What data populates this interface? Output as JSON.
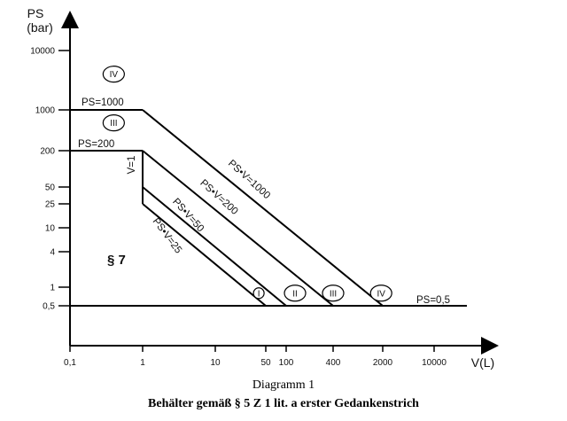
{
  "chart_data": {
    "type": "line",
    "y_axis": {
      "label_line1": "PS",
      "label_line2": "(bar)",
      "scale": "log",
      "ticks": [
        "0,5",
        "1",
        "4",
        "10",
        "25",
        "50",
        "200",
        "1000",
        "10000"
      ],
      "tick_values": [
        0.5,
        1,
        4,
        10,
        25,
        50,
        200,
        1000,
        10000
      ]
    },
    "x_axis": {
      "label": "V(L)",
      "scale": "log",
      "ticks": [
        "0,1",
        "1",
        "10",
        "50",
        "100",
        "400",
        "2000",
        "10000"
      ],
      "tick_values": [
        0.1,
        1,
        10,
        50,
        100,
        400,
        2000,
        10000
      ]
    },
    "series": [
      {
        "name": "PS=1000",
        "points": [
          [
            0.1,
            1000
          ],
          [
            1,
            1000
          ]
        ]
      },
      {
        "name": "PS•V=1000",
        "points": [
          [
            1,
            1000
          ],
          [
            2000,
            0.5
          ]
        ]
      },
      {
        "name": "PS=200",
        "points": [
          [
            0.1,
            200
          ],
          [
            1,
            200
          ]
        ]
      },
      {
        "name": "V=1",
        "points": [
          [
            1,
            200
          ],
          [
            1,
            25
          ]
        ]
      },
      {
        "name": "PS•V=200",
        "points": [
          [
            1,
            200
          ],
          [
            400,
            0.5
          ]
        ]
      },
      {
        "name": "PS•V=50",
        "points": [
          [
            1,
            50
          ],
          [
            100,
            0.5
          ]
        ]
      },
      {
        "name": "PS•V=25",
        "points": [
          [
            1,
            25
          ],
          [
            50,
            0.5
          ]
        ]
      },
      {
        "name": "PS=0,5",
        "points": [
          [
            0.1,
            0.5
          ],
          [
            15000,
            0.5
          ]
        ]
      }
    ],
    "annotations": [
      {
        "text": "PS=1000"
      },
      {
        "text": "PS=200"
      },
      {
        "text": "V=1"
      },
      {
        "text": "PS•V=1000"
      },
      {
        "text": "PS•V=200"
      },
      {
        "text": "PS•V=50"
      },
      {
        "text": "PS•V=25"
      },
      {
        "text": "PS=0,5"
      },
      {
        "text": "§ 7"
      }
    ],
    "categories_marked": [
      {
        "text": "IV",
        "x": 0.4,
        "y": 4000
      },
      {
        "text": "III",
        "x": 0.4,
        "y": 600
      },
      {
        "text": "I",
        "x": 40,
        "y": 0.8
      },
      {
        "text": "II",
        "x": 130,
        "y": 0.8
      },
      {
        "text": "III",
        "x": 400,
        "y": 0.8
      },
      {
        "text": "IV",
        "x": 1900,
        "y": 0.8
      }
    ]
  },
  "caption": "Diagramm 1",
  "subcaption": "Behälter gemäß § 5 Z 1 lit. a erster Gedankenstrich"
}
